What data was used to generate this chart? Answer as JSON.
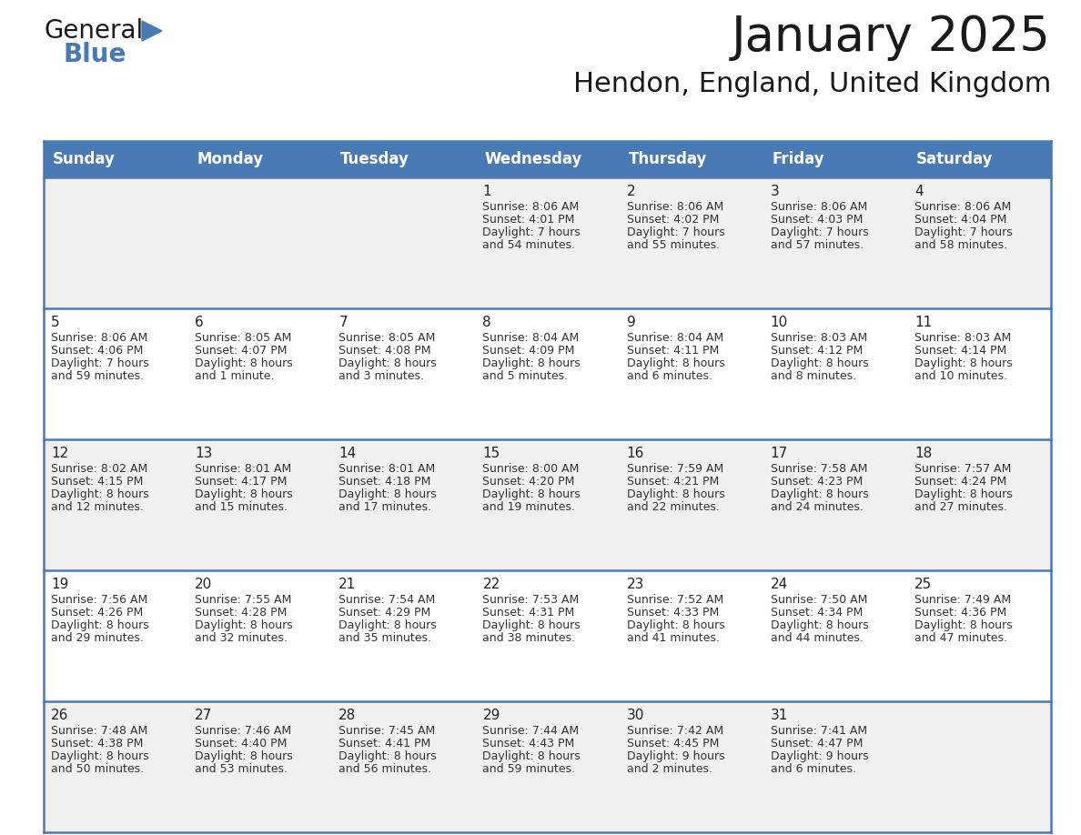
{
  "title": "January 2025",
  "subtitle": "Hendon, England, United Kingdom",
  "days_of_week": [
    "Sunday",
    "Monday",
    "Tuesday",
    "Wednesday",
    "Thursday",
    "Friday",
    "Saturday"
  ],
  "header_bg": "#4a7ab5",
  "header_text": "#FFFFFF",
  "row_bg_odd": "#F0F0F0",
  "row_bg_even": "#FFFFFF",
  "grid_line_color": "#4a7ab5",
  "day_num_color": "#222222",
  "cell_text_color": "#333333",
  "calendar_data": [
    [
      null,
      null,
      null,
      {
        "day": 1,
        "sunrise": "8:06 AM",
        "sunset": "4:01 PM",
        "daylight": "7 hours",
        "daylight2": "and 54 minutes."
      },
      {
        "day": 2,
        "sunrise": "8:06 AM",
        "sunset": "4:02 PM",
        "daylight": "7 hours",
        "daylight2": "and 55 minutes."
      },
      {
        "day": 3,
        "sunrise": "8:06 AM",
        "sunset": "4:03 PM",
        "daylight": "7 hours",
        "daylight2": "and 57 minutes."
      },
      {
        "day": 4,
        "sunrise": "8:06 AM",
        "sunset": "4:04 PM",
        "daylight": "7 hours",
        "daylight2": "and 58 minutes."
      }
    ],
    [
      {
        "day": 5,
        "sunrise": "8:06 AM",
        "sunset": "4:06 PM",
        "daylight": "7 hours",
        "daylight2": "and 59 minutes."
      },
      {
        "day": 6,
        "sunrise": "8:05 AM",
        "sunset": "4:07 PM",
        "daylight": "8 hours",
        "daylight2": "and 1 minute."
      },
      {
        "day": 7,
        "sunrise": "8:05 AM",
        "sunset": "4:08 PM",
        "daylight": "8 hours",
        "daylight2": "and 3 minutes."
      },
      {
        "day": 8,
        "sunrise": "8:04 AM",
        "sunset": "4:09 PM",
        "daylight": "8 hours",
        "daylight2": "and 5 minutes."
      },
      {
        "day": 9,
        "sunrise": "8:04 AM",
        "sunset": "4:11 PM",
        "daylight": "8 hours",
        "daylight2": "and 6 minutes."
      },
      {
        "day": 10,
        "sunrise": "8:03 AM",
        "sunset": "4:12 PM",
        "daylight": "8 hours",
        "daylight2": "and 8 minutes."
      },
      {
        "day": 11,
        "sunrise": "8:03 AM",
        "sunset": "4:14 PM",
        "daylight": "8 hours",
        "daylight2": "and 10 minutes."
      }
    ],
    [
      {
        "day": 12,
        "sunrise": "8:02 AM",
        "sunset": "4:15 PM",
        "daylight": "8 hours",
        "daylight2": "and 12 minutes."
      },
      {
        "day": 13,
        "sunrise": "8:01 AM",
        "sunset": "4:17 PM",
        "daylight": "8 hours",
        "daylight2": "and 15 minutes."
      },
      {
        "day": 14,
        "sunrise": "8:01 AM",
        "sunset": "4:18 PM",
        "daylight": "8 hours",
        "daylight2": "and 17 minutes."
      },
      {
        "day": 15,
        "sunrise": "8:00 AM",
        "sunset": "4:20 PM",
        "daylight": "8 hours",
        "daylight2": "and 19 minutes."
      },
      {
        "day": 16,
        "sunrise": "7:59 AM",
        "sunset": "4:21 PM",
        "daylight": "8 hours",
        "daylight2": "and 22 minutes."
      },
      {
        "day": 17,
        "sunrise": "7:58 AM",
        "sunset": "4:23 PM",
        "daylight": "8 hours",
        "daylight2": "and 24 minutes."
      },
      {
        "day": 18,
        "sunrise": "7:57 AM",
        "sunset": "4:24 PM",
        "daylight": "8 hours",
        "daylight2": "and 27 minutes."
      }
    ],
    [
      {
        "day": 19,
        "sunrise": "7:56 AM",
        "sunset": "4:26 PM",
        "daylight": "8 hours",
        "daylight2": "and 29 minutes."
      },
      {
        "day": 20,
        "sunrise": "7:55 AM",
        "sunset": "4:28 PM",
        "daylight": "8 hours",
        "daylight2": "and 32 minutes."
      },
      {
        "day": 21,
        "sunrise": "7:54 AM",
        "sunset": "4:29 PM",
        "daylight": "8 hours",
        "daylight2": "and 35 minutes."
      },
      {
        "day": 22,
        "sunrise": "7:53 AM",
        "sunset": "4:31 PM",
        "daylight": "8 hours",
        "daylight2": "and 38 minutes."
      },
      {
        "day": 23,
        "sunrise": "7:52 AM",
        "sunset": "4:33 PM",
        "daylight": "8 hours",
        "daylight2": "and 41 minutes."
      },
      {
        "day": 24,
        "sunrise": "7:50 AM",
        "sunset": "4:34 PM",
        "daylight": "8 hours",
        "daylight2": "and 44 minutes."
      },
      {
        "day": 25,
        "sunrise": "7:49 AM",
        "sunset": "4:36 PM",
        "daylight": "8 hours",
        "daylight2": "and 47 minutes."
      }
    ],
    [
      {
        "day": 26,
        "sunrise": "7:48 AM",
        "sunset": "4:38 PM",
        "daylight": "8 hours",
        "daylight2": "and 50 minutes."
      },
      {
        "day": 27,
        "sunrise": "7:46 AM",
        "sunset": "4:40 PM",
        "daylight": "8 hours",
        "daylight2": "and 53 minutes."
      },
      {
        "day": 28,
        "sunrise": "7:45 AM",
        "sunset": "4:41 PM",
        "daylight": "8 hours",
        "daylight2": "and 56 minutes."
      },
      {
        "day": 29,
        "sunrise": "7:44 AM",
        "sunset": "4:43 PM",
        "daylight": "8 hours",
        "daylight2": "and 59 minutes."
      },
      {
        "day": 30,
        "sunrise": "7:42 AM",
        "sunset": "4:45 PM",
        "daylight": "9 hours",
        "daylight2": "and 2 minutes."
      },
      {
        "day": 31,
        "sunrise": "7:41 AM",
        "sunset": "4:47 PM",
        "daylight": "9 hours",
        "daylight2": "and 6 minutes."
      },
      null
    ]
  ],
  "title_fontsize": 38,
  "subtitle_fontsize": 22,
  "header_fontsize": 12,
  "day_num_fontsize": 11,
  "cell_text_fontsize": 9
}
